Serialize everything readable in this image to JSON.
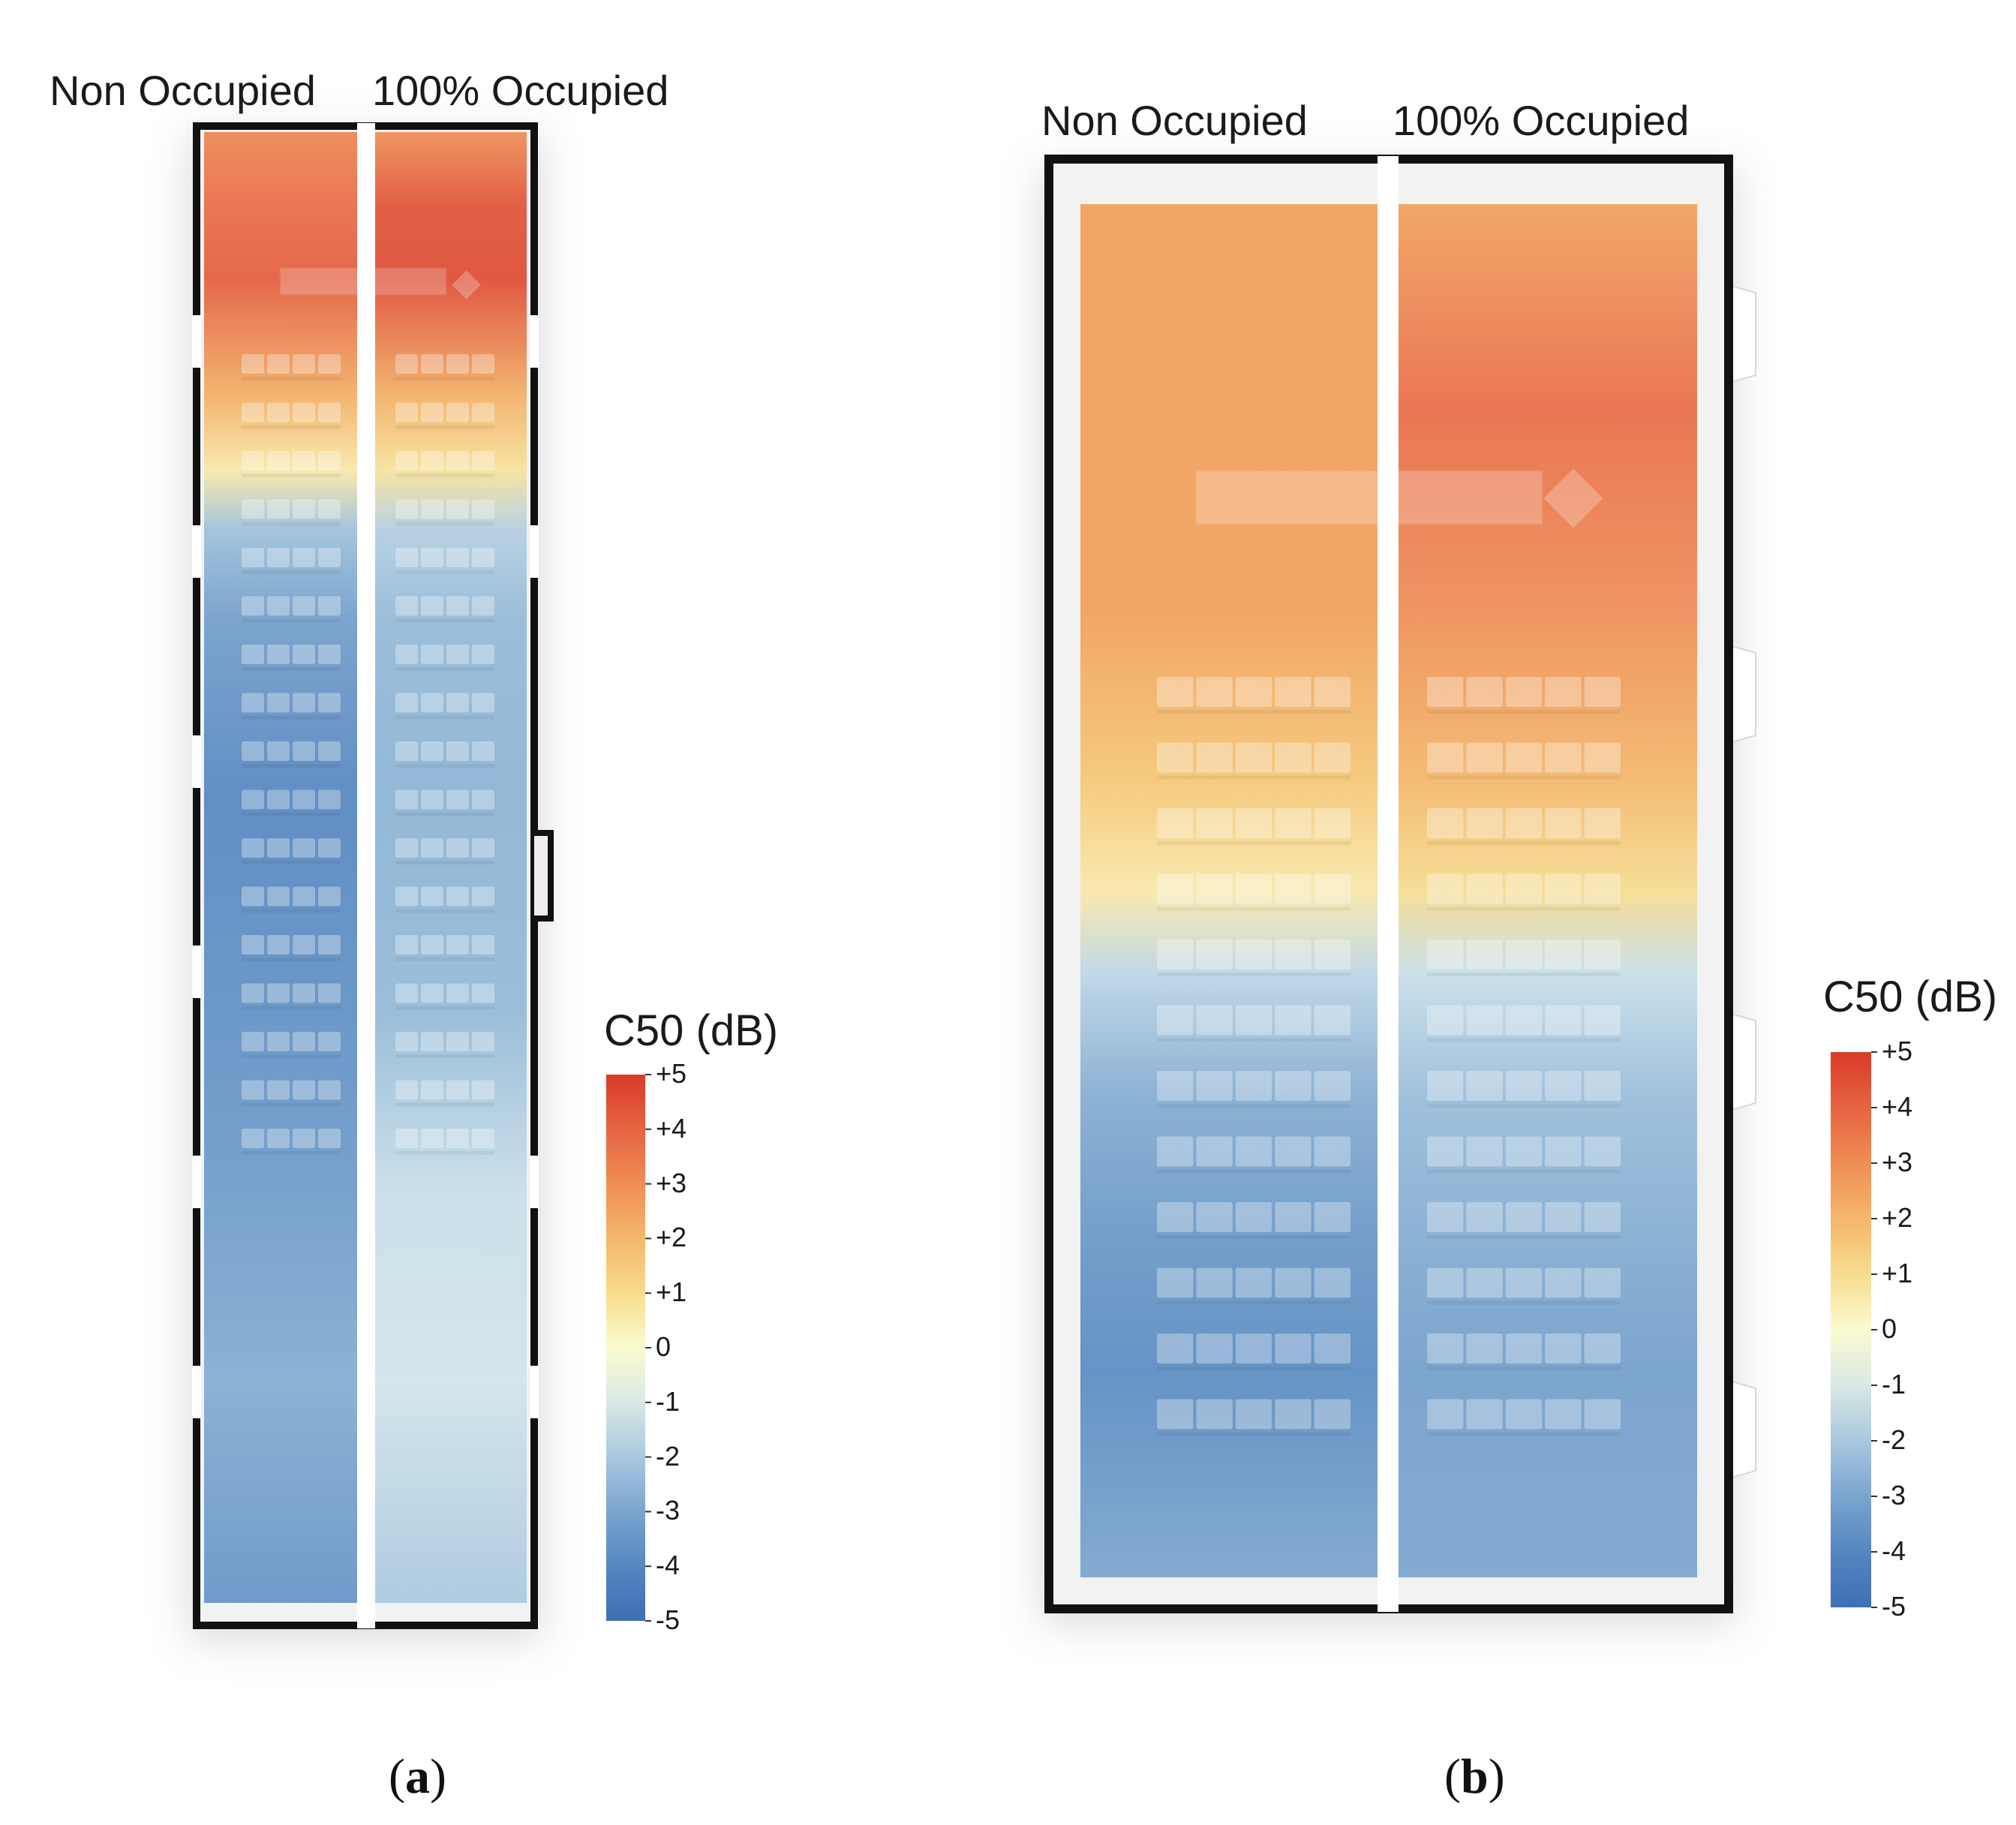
{
  "figure": {
    "panels": [
      {
        "id": "a",
        "caption_label": "a",
        "left_label": "Non Occupied",
        "right_label": "100% Occupied",
        "legend_title": "C50 (dB)",
        "seat_rows": 17,
        "windows": 0
      },
      {
        "id": "b",
        "caption_label": "b",
        "left_label": "Non Occupied",
        "right_label": "100% Occupied",
        "legend_title": "C50 (dB)",
        "seat_rows": 12,
        "windows": 2
      }
    ]
  },
  "colors": {
    "scale": [
      "#3f6fb4",
      "#5b8cc3",
      "#8fb6d6",
      "#cfe3ec",
      "#fbfbd0",
      "#f6d47e",
      "#f2a45e",
      "#ea6e47",
      "#d83b2a"
    ],
    "wall": "#111111",
    "divider": "#ffffff",
    "floor_shadow": "#e3e3e3"
  },
  "chart_data": [
    {
      "type": "heatmap",
      "panel": "a",
      "title": "C50 (dB)",
      "conditions": [
        "Non Occupied",
        "100% Occupied"
      ],
      "colorbar": {
        "min": -5,
        "max": 5,
        "ticks": [
          5,
          4,
          3,
          2,
          1,
          0,
          -1,
          -2,
          -3,
          -4,
          -5
        ],
        "tick_labels": [
          "+5",
          "+4",
          "+3",
          "+2",
          "+1",
          "0",
          "-1",
          "-2",
          "-3",
          "-4",
          "-5"
        ]
      },
      "profile": {
        "position_fraction": [
          0.0,
          0.05,
          0.1,
          0.18,
          0.23,
          0.27,
          0.33,
          0.45,
          0.6,
          0.72,
          0.85,
          1.0
        ],
        "non_occupied": [
          3.2,
          3.8,
          4.2,
          2.2,
          0.6,
          -2.2,
          -3.2,
          -4.0,
          -3.6,
          -3.3,
          -2.8,
          -3.5
        ],
        "occupied_100": [
          3.0,
          4.4,
          4.6,
          2.2,
          0.8,
          -1.8,
          -2.4,
          -2.6,
          -2.4,
          -1.4,
          -1.2,
          -2.0
        ]
      }
    },
    {
      "type": "heatmap",
      "panel": "b",
      "title": "C50 (dB)",
      "conditions": [
        "Non Occupied",
        "100% Occupied"
      ],
      "colorbar": {
        "min": -5,
        "max": 5,
        "ticks": [
          5,
          4,
          3,
          2,
          1,
          0,
          -1,
          -2,
          -3,
          -4,
          -5
        ],
        "tick_labels": [
          "+5",
          "+4",
          "+3",
          "+2",
          "+1",
          "0",
          "-1",
          "-2",
          "-3",
          "-4",
          "-5"
        ]
      },
      "profile": {
        "position_fraction": [
          0.0,
          0.15,
          0.3,
          0.42,
          0.5,
          0.56,
          0.65,
          0.75,
          0.85,
          1.0
        ],
        "non_occupied": [
          2.6,
          2.6,
          2.6,
          1.6,
          0.6,
          -1.6,
          -2.8,
          -3.4,
          -3.8,
          -3.0
        ],
        "occupied_100": [
          2.6,
          3.8,
          3.0,
          2.0,
          1.0,
          -1.4,
          -2.3,
          -2.8,
          -3.2,
          -3.0
        ]
      }
    }
  ]
}
